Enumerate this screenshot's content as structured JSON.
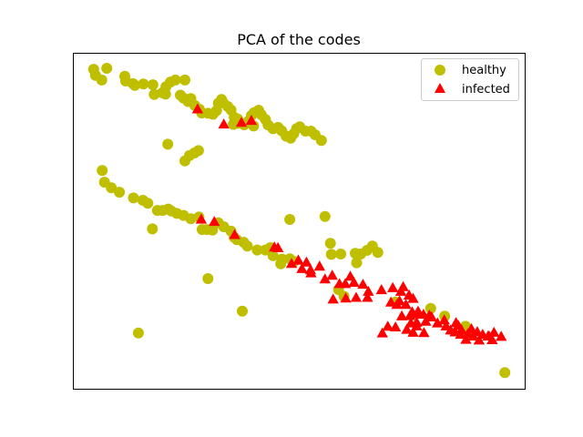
{
  "chart_data": {
    "type": "scatter",
    "title": "PCA of the codes",
    "xlabel": "",
    "ylabel": "",
    "xlim": [
      0,
      100
    ],
    "ylim": [
      0,
      100
    ],
    "axis_ticks": false,
    "grid": false,
    "legend": {
      "position": "top-right",
      "entries": [
        {
          "label": "healthy",
          "marker": "circle",
          "color": "#bfbf00"
        },
        {
          "label": "infected",
          "marker": "triangle",
          "color": "#ff0000"
        }
      ]
    },
    "series": [
      {
        "name": "healthy",
        "marker": "circle",
        "color": "#bfbf00",
        "points": [
          [
            4.6,
            95.1
          ],
          [
            5.0,
            93.3
          ],
          [
            6.4,
            91.9
          ],
          [
            7.5,
            95.4
          ],
          [
            11.5,
            93.0
          ],
          [
            11.7,
            91.6
          ],
          [
            13.3,
            90.8
          ],
          [
            13.7,
            90.3
          ],
          [
            15.6,
            90.7
          ],
          [
            17.7,
            90.5
          ],
          [
            18.0,
            87.6
          ],
          [
            19.8,
            88.1
          ],
          [
            20.6,
            89.9
          ],
          [
            21.6,
            91.3
          ],
          [
            22.7,
            91.9
          ],
          [
            24.8,
            91.9
          ],
          [
            20.5,
            87.7
          ],
          [
            23.8,
            87.4
          ],
          [
            24.5,
            86.5
          ],
          [
            25.5,
            85.5
          ],
          [
            26.1,
            86.4
          ],
          [
            27.0,
            84.3
          ],
          [
            28.0,
            83.2
          ],
          [
            28.5,
            82.1
          ],
          [
            29.9,
            82.0
          ],
          [
            31.0,
            81.7
          ],
          [
            31.8,
            82.8
          ],
          [
            32.2,
            85.0
          ],
          [
            32.9,
            86.1
          ],
          [
            33.3,
            85.1
          ],
          [
            34.3,
            84.0
          ],
          [
            35.0,
            83.0
          ],
          [
            35.7,
            80.8
          ],
          [
            36.5,
            80.3
          ],
          [
            36.9,
            79.1
          ],
          [
            37.9,
            78.6
          ],
          [
            38.7,
            79.5
          ],
          [
            39.5,
            81.3
          ],
          [
            40.1,
            82.2
          ],
          [
            41.1,
            82.9
          ],
          [
            41.7,
            81.6
          ],
          [
            42.6,
            80.2
          ],
          [
            43.2,
            78.5
          ],
          [
            44.3,
            77.4
          ],
          [
            45.4,
            77.8
          ],
          [
            46.2,
            76.8
          ],
          [
            47.2,
            75.2
          ],
          [
            48.2,
            74.6
          ],
          [
            48.9,
            75.9
          ],
          [
            49.5,
            77.4
          ],
          [
            50.2,
            78.0
          ],
          [
            51.5,
            76.7
          ],
          [
            52.7,
            76.7
          ],
          [
            53.6,
            75.6
          ],
          [
            55.0,
            73.9
          ],
          [
            36.4,
            79.0
          ],
          [
            35.5,
            78.7
          ],
          [
            40.0,
            78.2
          ],
          [
            21.0,
            72.8
          ],
          [
            24.8,
            67.8
          ],
          [
            25.8,
            69.4
          ],
          [
            26.9,
            70.2
          ],
          [
            27.8,
            70.9
          ],
          [
            6.5,
            65.0
          ],
          [
            7.0,
            61.5
          ],
          [
            8.5,
            59.8
          ],
          [
            10.3,
            58.5
          ],
          [
            13.4,
            56.8
          ],
          [
            15.5,
            56.1
          ],
          [
            16.6,
            55.2
          ],
          [
            18.7,
            53.1
          ],
          [
            19.9,
            53.1
          ],
          [
            21.1,
            53.5
          ],
          [
            21.8,
            52.9
          ],
          [
            23.0,
            52.2
          ],
          [
            24.5,
            51.6
          ],
          [
            26.1,
            50.6
          ],
          [
            27.9,
            51.1
          ],
          [
            28.6,
            47.4
          ],
          [
            29.7,
            47.4
          ],
          [
            30.9,
            47.2
          ],
          [
            32.2,
            49.4
          ],
          [
            33.4,
            48.2
          ],
          [
            35.0,
            46.9
          ],
          [
            17.6,
            47.6
          ],
          [
            35.7,
            45.1
          ],
          [
            36.3,
            44.4
          ],
          [
            37.8,
            43.6
          ],
          [
            38.6,
            42.5
          ],
          [
            40.8,
            41.3
          ],
          [
            42.6,
            41.3
          ],
          [
            43.7,
            42.0
          ],
          [
            44.3,
            39.6
          ],
          [
            46.3,
            38.6
          ],
          [
            46.0,
            37.2
          ],
          [
            48.0,
            38.7
          ],
          [
            49.0,
            37.9
          ],
          [
            48.0,
            50.4
          ],
          [
            55.8,
            51.3
          ],
          [
            57.2,
            40.0
          ],
          [
            59.3,
            40.1
          ],
          [
            62.8,
            37.5
          ],
          [
            63.7,
            40.1
          ],
          [
            62.5,
            40.3
          ],
          [
            65.1,
            41.2
          ],
          [
            66.3,
            42.5
          ],
          [
            67.5,
            40.6
          ],
          [
            60.0,
            27.5
          ],
          [
            57.0,
            43.3
          ],
          [
            29.9,
            32.8
          ],
          [
            37.5,
            23.1
          ],
          [
            14.5,
            16.6
          ],
          [
            58.8,
            29.5
          ],
          [
            71.4,
            25.8
          ],
          [
            79.2,
            23.9
          ],
          [
            82.3,
            21.6
          ],
          [
            87.4,
            16.8
          ],
          [
            86.9,
            18.6
          ],
          [
            95.6,
            4.8
          ]
        ]
      },
      {
        "name": "infected",
        "marker": "triangle",
        "color": "#ff0000",
        "points": [
          [
            27.6,
            83.2
          ],
          [
            33.4,
            78.7
          ],
          [
            37.3,
            79.2
          ],
          [
            39.5,
            79.8
          ],
          [
            28.4,
            50.4
          ],
          [
            31.3,
            49.7
          ],
          [
            35.8,
            45.8
          ],
          [
            44.6,
            42.1
          ],
          [
            45.4,
            41.9
          ],
          [
            48.4,
            37.2
          ],
          [
            49.9,
            38.2
          ],
          [
            51.7,
            37.6
          ],
          [
            50.7,
            35.7
          ],
          [
            52.6,
            35.3
          ],
          [
            54.6,
            36.4
          ],
          [
            52.7,
            34.4
          ],
          [
            55.8,
            32.6
          ],
          [
            57.4,
            33.7
          ],
          [
            59.0,
            31.2
          ],
          [
            60.3,
            31.2
          ],
          [
            61.4,
            33.4
          ],
          [
            62.2,
            31.6
          ],
          [
            64.2,
            31.0
          ],
          [
            65.4,
            28.9
          ],
          [
            57.6,
            26.6
          ],
          [
            60.4,
            26.9
          ],
          [
            62.7,
            27.1
          ],
          [
            65.2,
            27.1
          ],
          [
            68.3,
            29.4
          ],
          [
            70.8,
            30.0
          ],
          [
            73.1,
            30.3
          ],
          [
            72.3,
            26.1
          ],
          [
            72.6,
            28.9
          ],
          [
            74.4,
            27.8
          ],
          [
            73.7,
            25.0
          ],
          [
            75.3,
            26.8
          ],
          [
            70.4,
            25.7
          ],
          [
            71.7,
            25.0
          ],
          [
            75.1,
            22.8
          ],
          [
            74.6,
            21.7
          ],
          [
            76.4,
            23.0
          ],
          [
            77.6,
            22.1
          ],
          [
            76.3,
            22.2
          ],
          [
            76.1,
            19.7
          ],
          [
            74.8,
            19.5
          ],
          [
            73.9,
            17.6
          ],
          [
            72.8,
            21.6
          ],
          [
            71.4,
            18.3
          ],
          [
            69.7,
            18.5
          ],
          [
            68.5,
            16.5
          ],
          [
            75.3,
            16.7
          ],
          [
            76.1,
            18.6
          ],
          [
            77.7,
            16.6
          ],
          [
            78.1,
            20.0
          ],
          [
            78.9,
            21.8
          ],
          [
            79.4,
            21.3
          ],
          [
            80.7,
            19.5
          ],
          [
            82.6,
            18.6
          ],
          [
            82.2,
            20.4
          ],
          [
            83.6,
            17.4
          ],
          [
            85.3,
            18.8
          ],
          [
            86.0,
            17.5
          ],
          [
            84.6,
            16.8
          ],
          [
            87.4,
            16.3
          ],
          [
            88.2,
            17.8
          ],
          [
            89.5,
            16.9
          ],
          [
            88.6,
            15.6
          ],
          [
            90.7,
            16.1
          ],
          [
            92.1,
            15.6
          ],
          [
            84.8,
            19.6
          ],
          [
            85.8,
            16.1
          ],
          [
            87.0,
            14.6
          ],
          [
            89.9,
            14.4
          ],
          [
            91.9,
            15.6
          ],
          [
            92.8,
            14.5
          ],
          [
            93.2,
            16.7
          ],
          [
            94.8,
            15.5
          ]
        ]
      }
    ]
  }
}
